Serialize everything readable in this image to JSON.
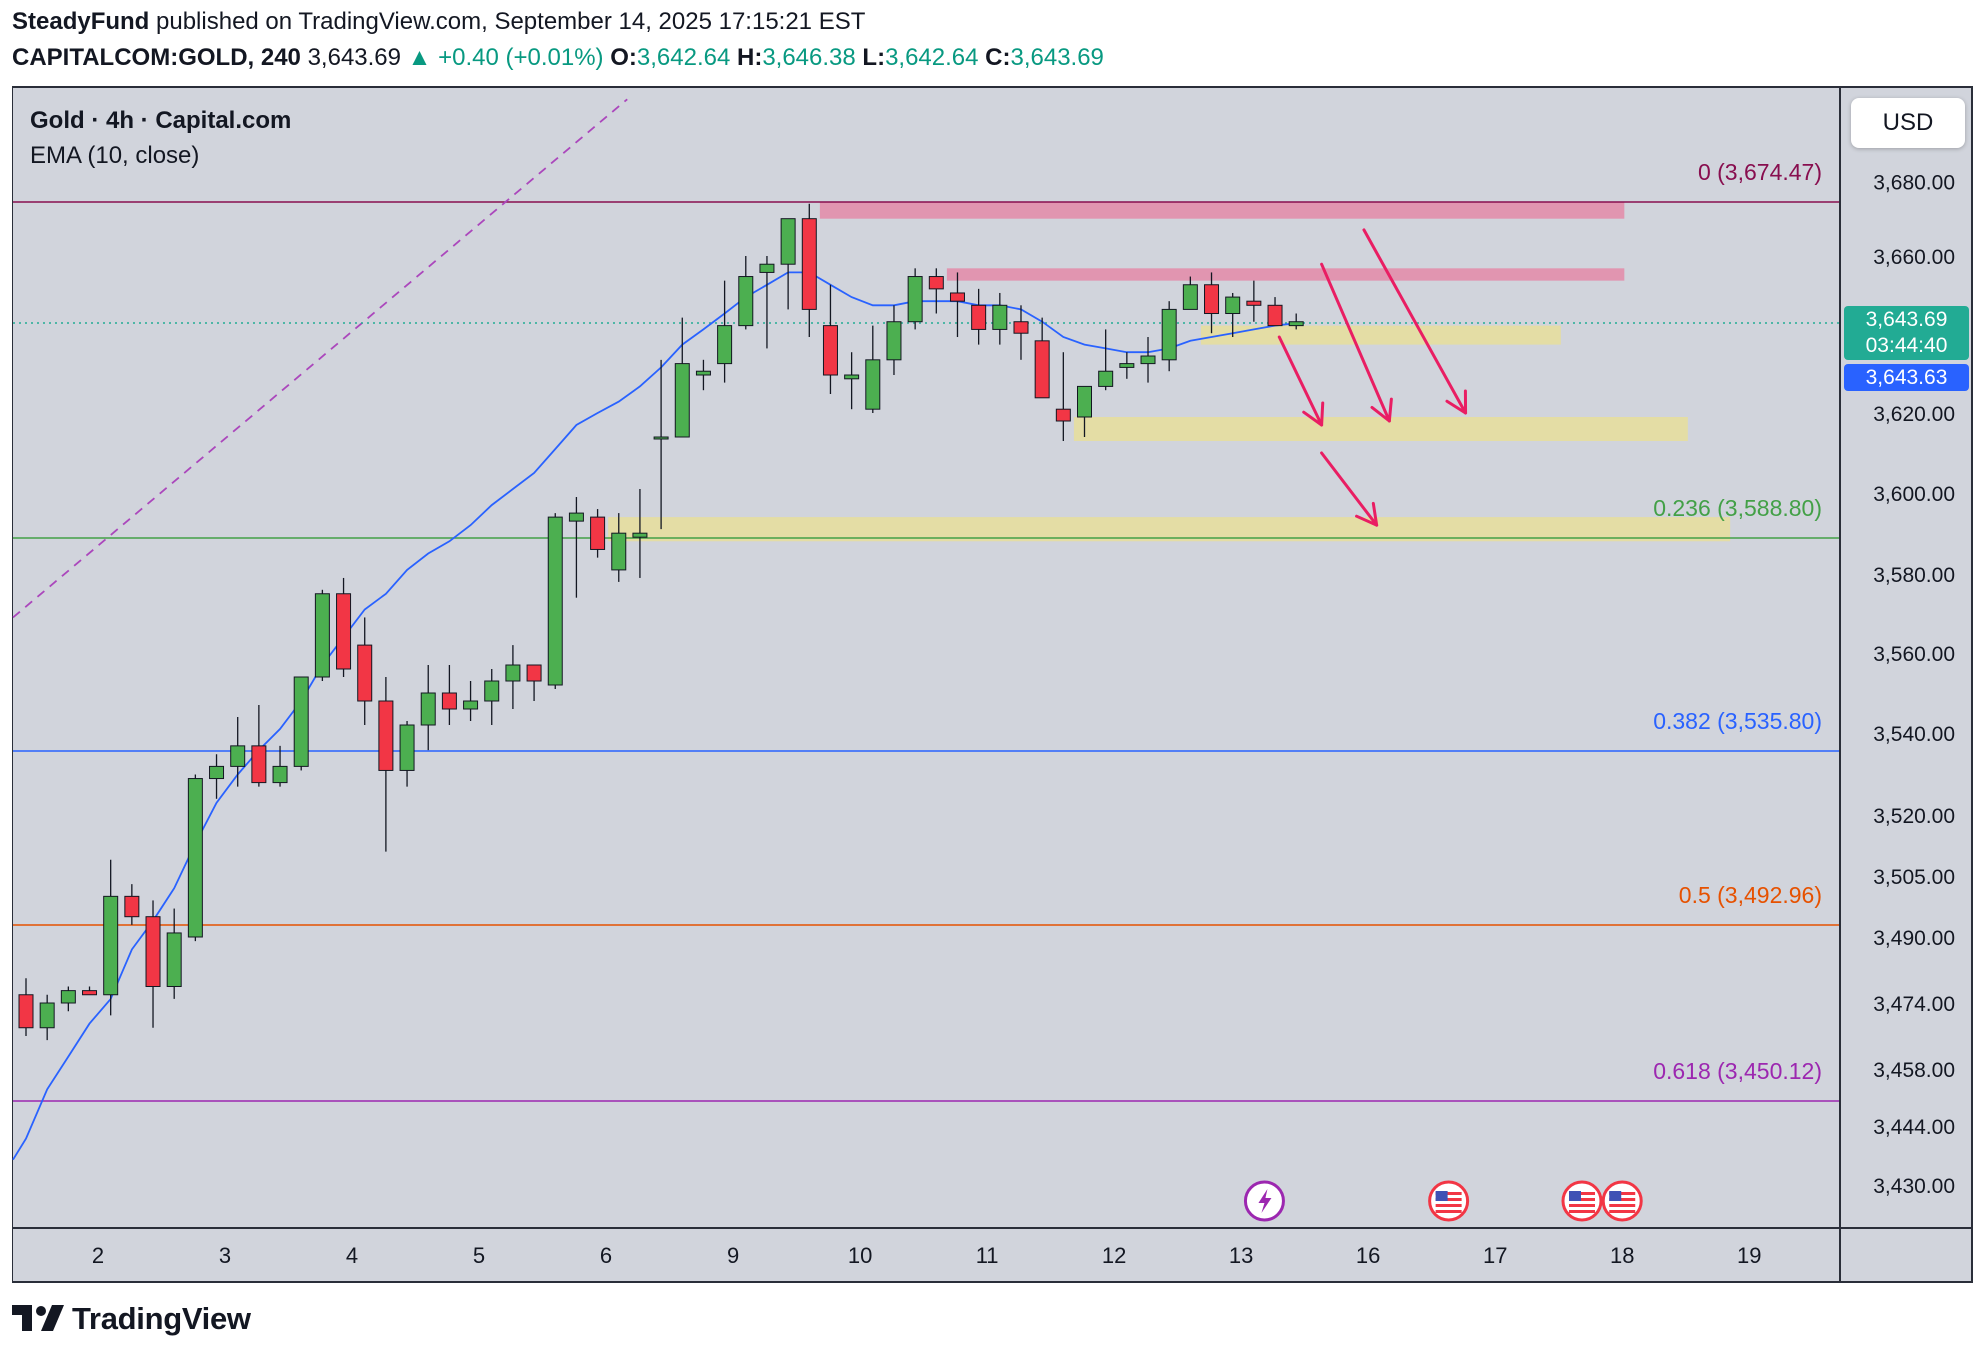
{
  "header": {
    "author": "SteadyFund",
    "published_text": "published on TradingView.com, September 14, 2025 17:15:21 EST",
    "symbol": "CAPITALCOM:GOLD, 240",
    "last": "3,643.69",
    "change": "▲ +0.40 (+0.01%)",
    "o_label": "O:",
    "o_value": "3,642.64",
    "h_label": "H:",
    "h_value": "3,646.38",
    "l_label": "L:",
    "l_value": "3,642.64",
    "c_label": "C:",
    "c_value": "3,643.69"
  },
  "legend": {
    "title": "Gold · 4h · Capital.com",
    "indicator": "EMA (10, close)"
  },
  "currency_button": "USD",
  "price_tags": {
    "last_price": "3,643.69",
    "countdown": "03:44:40",
    "ema_value": "3,643.63"
  },
  "branding": {
    "name": "TradingView"
  },
  "colors": {
    "background": "#d1d4dc",
    "up": "#4caf50",
    "down": "#f23645",
    "ema": "#2962ff",
    "resistance_zone": "#e48aa8",
    "target_zone": "#e6de9e",
    "arrow": "#e91e63",
    "last_price": "#22ab94"
  },
  "chart_data": {
    "type": "candlestick",
    "title": "Gold · 4h · Capital.com",
    "ylim": [
      3420,
      3690
    ],
    "yticks": [
      "3,680.00",
      "3,660.00",
      "3,643.69",
      "3,620.00",
      "3,600.00",
      "3,580.00",
      "3,560.00",
      "3,540.00",
      "3,520.00",
      "3,505.00",
      "3,490.00",
      "3,474.00",
      "3,458.00",
      "3,444.00",
      "3,430.00"
    ],
    "ytick_values": [
      3680,
      3660,
      3643.69,
      3620,
      3600,
      3580,
      3560,
      3540,
      3520,
      3505,
      3490,
      3474,
      3458,
      3444,
      3430
    ],
    "xticks": [
      {
        "label": "2",
        "bar": 3.4
      },
      {
        "label": "3",
        "bar": 9.4
      },
      {
        "label": "4",
        "bar": 15.4
      },
      {
        "label": "5",
        "bar": 21.4
      },
      {
        "label": "6",
        "bar": 27.4
      },
      {
        "label": "9",
        "bar": 33.4
      },
      {
        "label": "10",
        "bar": 39.4
      },
      {
        "label": "11",
        "bar": 45.4
      },
      {
        "label": "12",
        "bar": 51.4
      },
      {
        "label": "13",
        "bar": 57.4
      },
      {
        "label": "16",
        "bar": 63.4
      },
      {
        "label": "17",
        "bar": 69.4
      },
      {
        "label": "18",
        "bar": 75.4
      },
      {
        "label": "19",
        "bar": 81.4
      }
    ],
    "candles": [
      [
        3476,
        3480,
        3466,
        3468
      ],
      [
        3468,
        3476,
        3465,
        3474
      ],
      [
        3474,
        3478,
        3472,
        3477
      ],
      [
        3477,
        3478,
        3476,
        3476
      ],
      [
        3476,
        3509,
        3471,
        3500
      ],
      [
        3500,
        3503,
        3493,
        3495
      ],
      [
        3495,
        3499,
        3468,
        3478
      ],
      [
        3478,
        3497,
        3475,
        3491
      ],
      [
        3490,
        3530,
        3489,
        3529
      ],
      [
        3529,
        3535,
        3524,
        3532
      ],
      [
        3532,
        3544,
        3527,
        3537
      ],
      [
        3537,
        3547,
        3527,
        3528
      ],
      [
        3528,
        3537,
        3527,
        3532
      ],
      [
        3532,
        3554,
        3531,
        3554
      ],
      [
        3554,
        3576,
        3553,
        3575
      ],
      [
        3575,
        3579,
        3554,
        3556
      ],
      [
        3562,
        3569,
        3542,
        3548
      ],
      [
        3548,
        3554,
        3511,
        3531
      ],
      [
        3531,
        3543,
        3527,
        3542
      ],
      [
        3542,
        3557,
        3536,
        3550
      ],
      [
        3550,
        3557,
        3542,
        3546
      ],
      [
        3546,
        3553,
        3543,
        3548
      ],
      [
        3548,
        3556,
        3542,
        3553
      ],
      [
        3553,
        3562,
        3546,
        3557
      ],
      [
        3557,
        3557,
        3548,
        3553
      ],
      [
        3552,
        3595,
        3551,
        3594
      ],
      [
        3593,
        3599,
        3574,
        3595
      ],
      [
        3594,
        3596,
        3584,
        3586
      ],
      [
        3581,
        3595,
        3578,
        3590
      ],
      [
        3589,
        3601,
        3579,
        3590
      ],
      [
        3614,
        3634,
        3591,
        3614
      ],
      [
        3614,
        3645,
        3614,
        3633
      ],
      [
        3630,
        3634,
        3626,
        3631
      ],
      [
        3633,
        3654,
        3628,
        3643
      ],
      [
        3643,
        3660,
        3642,
        3655
      ],
      [
        3656,
        3660,
        3637,
        3658
      ],
      [
        3658,
        3668,
        3647,
        3670
      ],
      [
        3670,
        3674,
        3640,
        3647
      ],
      [
        3643,
        3653,
        3625,
        3630
      ],
      [
        3629,
        3636,
        3621,
        3630
      ],
      [
        3621,
        3643,
        3620,
        3634
      ],
      [
        3634,
        3648,
        3630,
        3644
      ],
      [
        3644,
        3657,
        3642,
        3655
      ],
      [
        3655,
        3657,
        3646,
        3652
      ],
      [
        3651,
        3656,
        3640,
        3649
      ],
      [
        3648,
        3652,
        3638,
        3642
      ],
      [
        3642,
        3651,
        3638,
        3648
      ],
      [
        3644,
        3648,
        3634,
        3641
      ],
      [
        3639,
        3645,
        3624,
        3624
      ],
      [
        3621,
        3636,
        3613,
        3618
      ],
      [
        3619,
        3627,
        3614,
        3627
      ],
      [
        3627,
        3642,
        3626,
        3631
      ],
      [
        3632,
        3636,
        3629,
        3633
      ],
      [
        3633,
        3640,
        3628,
        3635
      ],
      [
        3634,
        3649,
        3631,
        3647
      ],
      [
        3647,
        3655,
        3647,
        3653
      ],
      [
        3653,
        3656,
        3641,
        3646
      ],
      [
        3646,
        3651,
        3640,
        3650
      ],
      [
        3649,
        3654,
        3644,
        3648
      ],
      [
        3648,
        3650,
        3645,
        3643
      ],
      [
        3643,
        3646,
        3642,
        3644
      ]
    ],
    "ema": {
      "name": "EMA (10, close)",
      "values": [
        3441,
        3453,
        3461,
        3469,
        3475,
        3487,
        3494,
        3502,
        3513,
        3523,
        3530,
        3536,
        3541,
        3548,
        3557,
        3564,
        3571,
        3575,
        3581,
        3585,
        3588,
        3592,
        3597,
        3601,
        3605,
        3611,
        3617,
        3620,
        3623,
        3627,
        3632,
        3638,
        3642,
        3646,
        3650,
        3653,
        3656,
        3656,
        3653,
        3650,
        3648,
        3648,
        3649,
        3649,
        3649,
        3648,
        3648,
        3647,
        3644,
        3640,
        3638,
        3637,
        3636,
        3636,
        3637,
        3639,
        3640,
        3641,
        3642,
        3643,
        3643.63
      ]
    },
    "fibonacci": [
      {
        "level": "0",
        "price": 3674.47,
        "label": "0 (3,674.47)",
        "color": "#880e4f"
      },
      {
        "level": "0.236",
        "price": 3588.8,
        "label": "0.236 (3,588.80)",
        "color": "#43a047"
      },
      {
        "level": "0.382",
        "price": 3535.8,
        "label": "0.382 (3,535.80)",
        "color": "#2962ff"
      },
      {
        "level": "0.5",
        "price": 3492.96,
        "label": "0.5 (3,492.96)",
        "color": "#e65100"
      },
      {
        "level": "0.618",
        "price": 3450.12,
        "label": "0.618 (3,450.12)",
        "color": "#9c27b0"
      }
    ],
    "zones": [
      {
        "type": "resistance",
        "from_bar": 37.5,
        "to_bar": 75.5,
        "low": 3670,
        "high": 3674.5
      },
      {
        "type": "resistance",
        "from_bar": 43.5,
        "to_bar": 75.5,
        "low": 3654,
        "high": 3657
      },
      {
        "type": "target",
        "from_bar": 55.5,
        "to_bar": 72.5,
        "low": 3638,
        "high": 3643
      },
      {
        "type": "target",
        "from_bar": 49.5,
        "to_bar": 78.5,
        "low": 3613,
        "high": 3619
      },
      {
        "type": "target",
        "from_bar": 27.5,
        "to_bar": 80.5,
        "low": 3588,
        "high": 3594
      }
    ],
    "arrows": [
      {
        "from": [
          59.2,
          3640
        ],
        "to": [
          61.2,
          3617
        ]
      },
      {
        "from": [
          61.2,
          3658
        ],
        "to": [
          64.4,
          3618
        ]
      },
      {
        "from": [
          63.2,
          3667
        ],
        "to": [
          68.0,
          3620
        ]
      },
      {
        "from": [
          61.2,
          3610
        ],
        "to": [
          63.8,
          3592
        ]
      }
    ],
    "trend_line": {
      "from": [
        -3.5,
        3556
      ],
      "to": [
        28.4,
        3702
      ],
      "style": "dashed",
      "color": "#ab47bc"
    },
    "events": [
      {
        "bar": 58.5,
        "kind": "lightning"
      },
      {
        "bar": 67.2,
        "kind": "us-flag"
      },
      {
        "bar": 73.5,
        "kind": "us-flag"
      },
      {
        "bar": 75.4,
        "kind": "us-flag"
      }
    ]
  }
}
